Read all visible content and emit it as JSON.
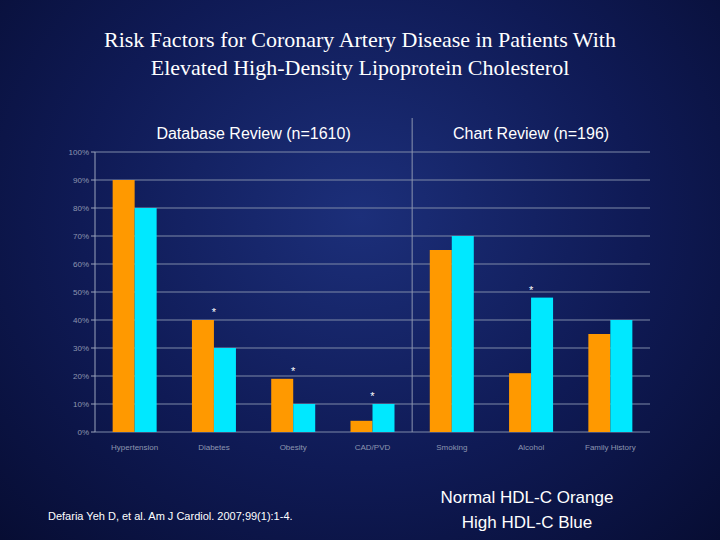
{
  "chart_data": {
    "type": "bar",
    "title": "Risk Factors for Coronary Artery Disease in Patients With Elevated High-Density Lipoprotein Cholesterol",
    "categories": [
      "Hypertension",
      "Diabetes",
      "Obesity",
      "CAD/PVD",
      "Smoking",
      "Alcohol",
      "Family History"
    ],
    "series": [
      {
        "name": "Normal HDL-C Orange",
        "color": "#ff9900",
        "values": [
          90,
          40,
          19,
          4,
          65,
          21,
          35
        ]
      },
      {
        "name": "High HDL-C Blue",
        "color": "#00e8ff",
        "values": [
          80,
          30,
          10,
          10,
          70,
          48,
          40
        ]
      }
    ],
    "panels": [
      {
        "label": "Database Review (n=1610)",
        "categories": [
          "Hypertension",
          "Diabetes",
          "Obesity",
          "CAD/PVD"
        ]
      },
      {
        "label": "Chart Review (n=196)",
        "categories": [
          "Smoking",
          "Alcohol",
          "Family History"
        ]
      }
    ],
    "annotations": [
      {
        "category": "Diabetes",
        "text": "*"
      },
      {
        "category": "Obesity",
        "text": "*"
      },
      {
        "category": "CAD/PVD",
        "text": "*"
      },
      {
        "category": "Alcohol",
        "text": "*"
      }
    ],
    "source": "Defaria Yeh D, et al. Am J Cardiol. 2007;99(1):1-4.",
    "ylim": [
      0,
      100
    ],
    "yticks": [
      {
        "value": 0,
        "label": "0%"
      },
      {
        "value": 10,
        "label": "10%"
      },
      {
        "value": 20,
        "label": "20%"
      },
      {
        "value": 30,
        "label": "30%"
      },
      {
        "value": 40,
        "label": "40%"
      },
      {
        "value": 50,
        "label": "50%"
      },
      {
        "value": 60,
        "label": "60%"
      },
      {
        "value": 70,
        "label": "70%"
      },
      {
        "value": 80,
        "label": "80%"
      },
      {
        "value": 90,
        "label": "90%"
      },
      {
        "value": 100,
        "label": "100%"
      }
    ],
    "grid": true,
    "legend": "bottom-right"
  }
}
